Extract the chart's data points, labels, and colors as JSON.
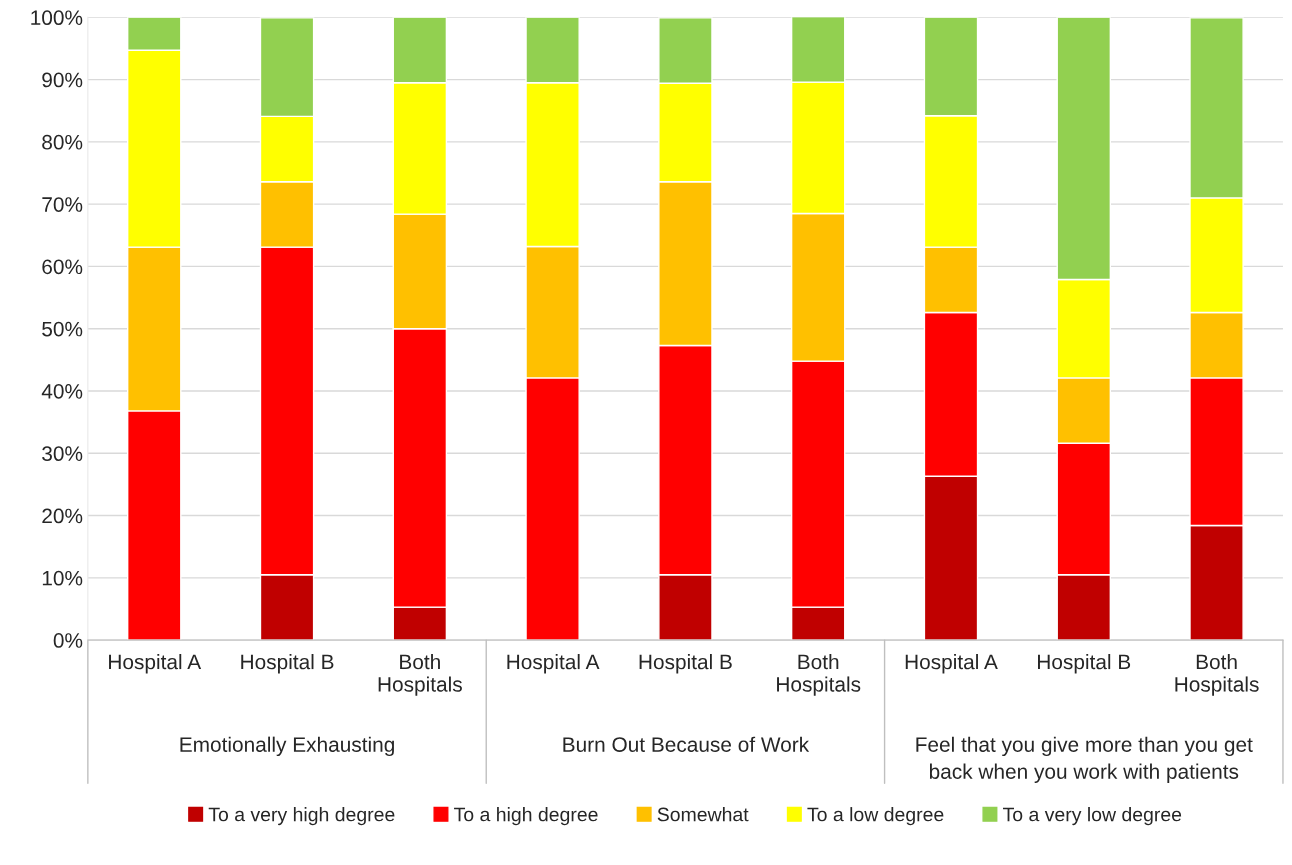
{
  "chart_data": {
    "type": "bar",
    "stacked": true,
    "categories": [
      "Hospital A",
      "Hospital B",
      "Both\nHospitals",
      "Hospital A",
      "Hospital B",
      "Both\nHospitals",
      "Hospital A",
      "Hospital B",
      "Both\nHospitals"
    ],
    "series": [
      {
        "name": "To a very high degree",
        "color": "#c00000",
        "values": [
          0,
          10.5,
          5.3,
          0,
          10.5,
          5.3,
          26.3,
          10.5,
          18.4
        ]
      },
      {
        "name": "To a high degree",
        "color": "#ff0000",
        "values": [
          36.8,
          52.6,
          44.7,
          42.1,
          36.8,
          39.5,
          26.3,
          21.1,
          23.7
        ]
      },
      {
        "name": "Somewhat",
        "color": "#ffc000",
        "values": [
          26.3,
          10.5,
          18.4,
          21.1,
          26.3,
          23.7,
          10.5,
          10.5,
          10.5
        ]
      },
      {
        "name": "To a low degree",
        "color": "#ffff00",
        "values": [
          31.6,
          10.5,
          21.1,
          26.3,
          15.8,
          21.1,
          21.1,
          15.8,
          18.4
        ]
      },
      {
        "name": "To a very low degree",
        "color": "#92d050",
        "values": [
          5.3,
          15.8,
          10.5,
          10.5,
          10.5,
          10.5,
          15.8,
          42.1,
          28.9
        ]
      }
    ],
    "annotations": [
      "Emotionally Exhausting",
      "Burn Out Because of Work",
      "Feel that you give more than you get\nback when you work with patients"
    ],
    "ylim": [
      0,
      100
    ],
    "yticks": [
      {
        "value": 0,
        "label": "0%"
      },
      {
        "value": 10,
        "label": "10%"
      },
      {
        "value": 20,
        "label": "20%"
      },
      {
        "value": 30,
        "label": "30%"
      },
      {
        "value": 40,
        "label": "40%"
      },
      {
        "value": 50,
        "label": "50%"
      },
      {
        "value": 60,
        "label": "60%"
      },
      {
        "value": 70,
        "label": "70%"
      },
      {
        "value": 80,
        "label": "80%"
      },
      {
        "value": 90,
        "label": "90%"
      },
      {
        "value": 100,
        "label": "100%"
      }
    ],
    "grid": "y",
    "legend": "bottom"
  }
}
